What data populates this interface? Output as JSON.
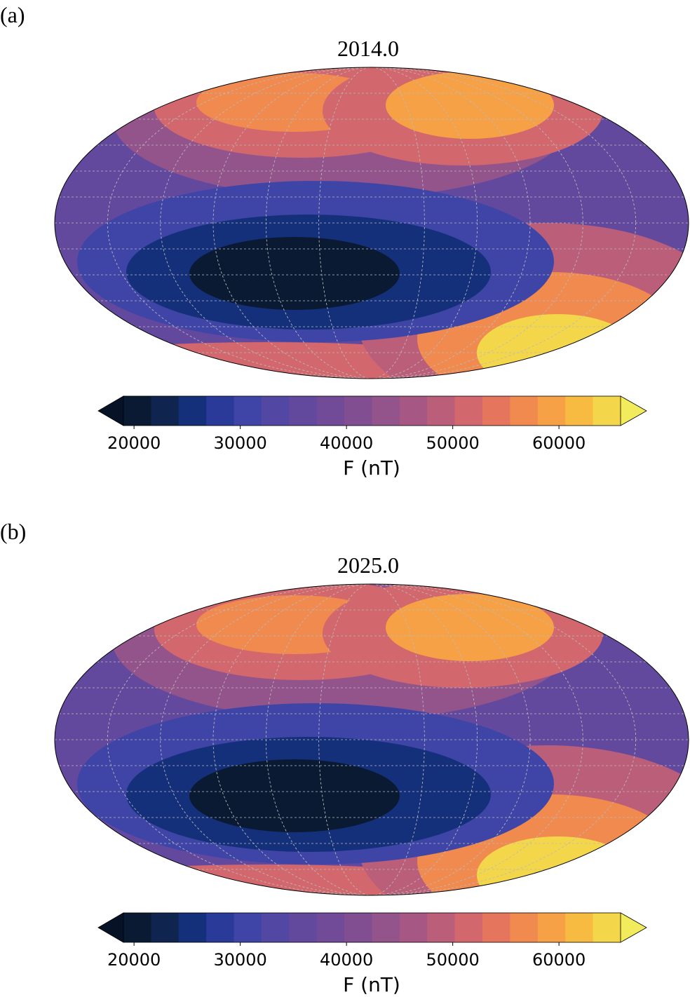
{
  "chart_data": [
    {
      "type": "contour-map",
      "panel_label": "(a)",
      "title": "2014.0",
      "colorbar": {
        "label": "F (nT)",
        "levels": [
          19000,
          21600,
          24200,
          26800,
          29400,
          32000,
          34600,
          37200,
          39800,
          42400,
          45000,
          47600,
          50200,
          52800,
          55400,
          58000,
          60600,
          63200,
          65800
        ],
        "colors": [
          "#0b1a33",
          "#0f2550",
          "#14307a",
          "#2a3a98",
          "#3f45a6",
          "#5248a4",
          "#63499e",
          "#724b98",
          "#824e92",
          "#93538b",
          "#a65784",
          "#bb5e7a",
          "#d2676d",
          "#e5765d",
          "#f08a4f",
          "#f6a145",
          "#f8bb41",
          "#f4d64a"
        ],
        "under_color": "#061226",
        "over_color": "#f2ec5c",
        "xticks": [
          20000,
          30000,
          40000,
          50000,
          60000
        ]
      }
    },
    {
      "type": "contour-map",
      "panel_label": "(b)",
      "title": "2025.0",
      "colorbar": {
        "label": "F (nT)",
        "levels": [
          19000,
          21600,
          24200,
          26800,
          29400,
          32000,
          34600,
          37200,
          39800,
          42400,
          45000,
          47600,
          50200,
          52800,
          55400,
          58000,
          60600,
          63200,
          65800
        ],
        "colors": [
          "#0b1a33",
          "#0f2550",
          "#14307a",
          "#2a3a98",
          "#3f45a6",
          "#5248a4",
          "#63499e",
          "#724b98",
          "#824e92",
          "#93538b",
          "#a65784",
          "#bb5e7a",
          "#d2676d",
          "#e5765d",
          "#f08a4f",
          "#f6a145",
          "#f8bb41",
          "#f4d64a"
        ],
        "under_color": "#061226",
        "over_color": "#f2ec5c",
        "xticks": [
          20000,
          30000,
          40000,
          50000,
          60000
        ]
      }
    }
  ]
}
